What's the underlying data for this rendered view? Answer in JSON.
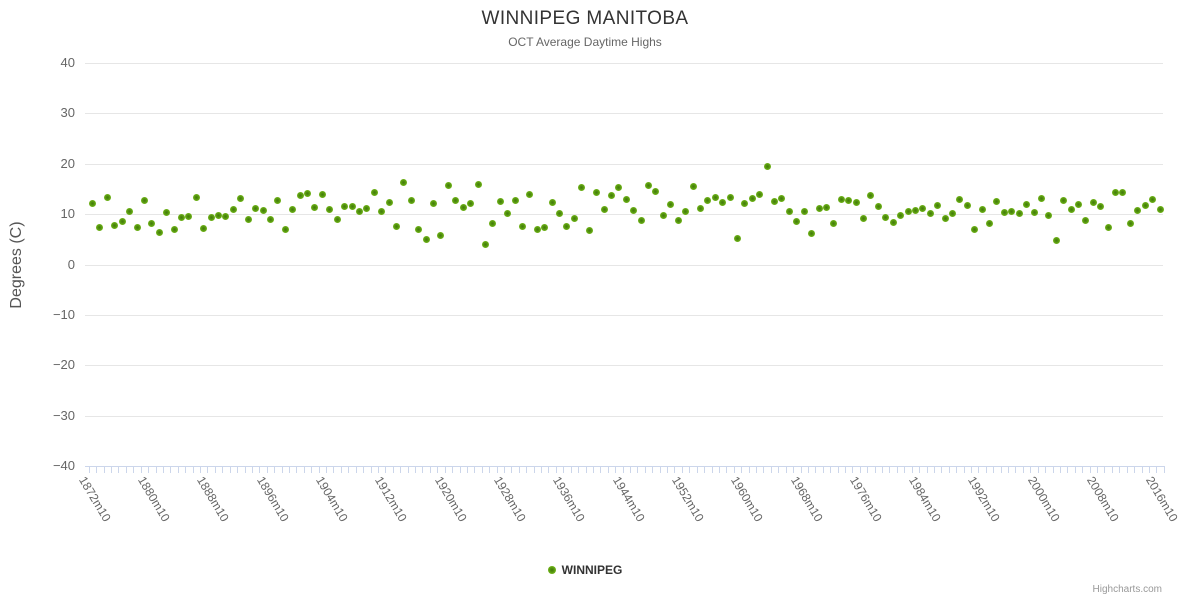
{
  "title": {
    "text": "WINNIPEG MANITOBA"
  },
  "subtitle": {
    "text": "OCT Average Daytime Highs"
  },
  "y_axis": {
    "title": "Degrees (C)",
    "tick_labels": [
      "40",
      "30",
      "20",
      "10",
      "0",
      "−10",
      "−20",
      "−30",
      "−40"
    ],
    "min": -40,
    "max": 40
  },
  "x_axis": {
    "tick_labels": [
      "1872m10",
      "1880m10",
      "1888m10",
      "1896m10",
      "1904m10",
      "1912m10",
      "1920m10",
      "1928m10",
      "1936m10",
      "1944m10",
      "1952m10",
      "1960m10",
      "1968m10",
      "1976m10",
      "1984m10",
      "1992m10",
      "2000m10",
      "2008m10",
      "2016m10"
    ],
    "label_step_years": 8
  },
  "legend": {
    "items": [
      {
        "label": "WINNIPEG",
        "color": "#7ab61e"
      }
    ]
  },
  "credits": {
    "text": "Highcharts.com"
  },
  "colors": {
    "marker_outer": "#7abd1d",
    "marker_inner": "#41770b",
    "grid": "#e6e6e6",
    "axis_line": "#ccd6eb",
    "title_text": "#333333",
    "label_text": "#666666",
    "credits_text": "#999999"
  },
  "chart_data": {
    "type": "scatter",
    "title": "WINNIPEG MANITOBA",
    "subtitle": "OCT Average Daytime Highs",
    "xlabel": "",
    "ylabel": "Degrees (C)",
    "ylim": [
      -40,
      40
    ],
    "grid": true,
    "legend_position": "bottom",
    "x_start_year": 1872,
    "x_end_year": 2016,
    "x_category_format": "{year}m10",
    "series": [
      {
        "name": "WINNIPEG",
        "color": "#7ab61e",
        "values": [
          12.1,
          7.3,
          13.4,
          7.7,
          8.5,
          10.6,
          7.3,
          12.8,
          8.1,
          6.4,
          10.4,
          6.9,
          9.3,
          9.5,
          13.4,
          7.1,
          9.3,
          9.7,
          9.6,
          10.9,
          13.2,
          8.9,
          11.2,
          10.8,
          9.0,
          12.8,
          6.9,
          11.0,
          13.7,
          14.2,
          11.4,
          13.9,
          11.0,
          8.9,
          11.6,
          11.6,
          10.6,
          11.2,
          14.3,
          10.6,
          12.4,
          7.5,
          16.3,
          12.8,
          6.9,
          5.0,
          12.2,
          5.8,
          15.6,
          12.8,
          11.3,
          12.1,
          15.9,
          4.0,
          8.1,
          12.6,
          10.1,
          12.8,
          7.6,
          13.9,
          6.9,
          7.3,
          12.4,
          10.1,
          7.5,
          9.1,
          15.3,
          6.8,
          14.3,
          10.9,
          13.7,
          15.2,
          13.0,
          10.7,
          8.8,
          15.6,
          14.6,
          9.8,
          11.9,
          8.7,
          10.6,
          15.5,
          11.1,
          12.8,
          13.4,
          12.4,
          13.4,
          5.2,
          12.2,
          13.2,
          14.0,
          19.4,
          12.6,
          13.2,
          10.6,
          8.6,
          10.6,
          6.1,
          11.2,
          11.4,
          8.1,
          13.0,
          12.7,
          12.4,
          9.1,
          13.7,
          11.6,
          9.4,
          8.3,
          9.7,
          10.6,
          10.8,
          11.1,
          10.1,
          11.8,
          9.1,
          10.1,
          12.9,
          11.7,
          6.9,
          10.9,
          8.2,
          12.6,
          10.3,
          10.6,
          10.1,
          12.0,
          10.4,
          13.1,
          9.8,
          4.8,
          12.7,
          10.9,
          12.0,
          8.7,
          12.4,
          11.6,
          7.3,
          14.3,
          14.3,
          8.1,
          10.7,
          11.8,
          13.0,
          10.9
        ]
      }
    ]
  }
}
